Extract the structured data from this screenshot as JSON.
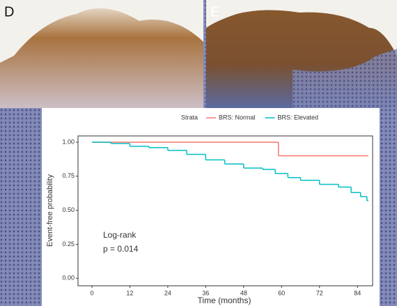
{
  "panels": {
    "left_label": "D",
    "right_label": "E"
  },
  "chart_data": {
    "type": "step",
    "y_label": "Event-free probability",
    "x_label": "Time (months)",
    "legend_title": "Strata",
    "legend_position": "top",
    "annotations": [
      "Log-rank",
      "p = 0.014"
    ],
    "xlim": [
      -4.4,
      88.8
    ],
    "ylim": [
      -0.055,
      1.046
    ],
    "xticks": [
      0,
      12,
      24,
      36,
      48,
      60,
      72,
      84
    ],
    "yticks": [
      {
        "value": 0,
        "label": "0.00"
      },
      {
        "value": 0.25,
        "label": "0.25"
      },
      {
        "value": 0.5,
        "label": "0.50"
      },
      {
        "value": 0.75,
        "label": "0.75"
      },
      {
        "value": 1,
        "label": "1.00"
      }
    ],
    "series": [
      {
        "name": "BRS: Normal",
        "color": "#f8766d",
        "x": [
          0,
          59,
          87
        ],
        "values": [
          1.0,
          0.9,
          0.9
        ]
      },
      {
        "name": "BRS: Elevated",
        "color": "#00bfc4",
        "x": [
          0,
          6,
          12,
          18,
          24,
          30,
          36,
          42,
          48,
          54,
          58,
          62,
          66,
          72,
          78,
          82,
          85,
          87
        ],
        "values": [
          1.0,
          0.99,
          0.97,
          0.96,
          0.94,
          0.91,
          0.87,
          0.84,
          0.81,
          0.8,
          0.77,
          0.74,
          0.72,
          0.69,
          0.67,
          0.63,
          0.6,
          0.57
        ]
      }
    ]
  }
}
